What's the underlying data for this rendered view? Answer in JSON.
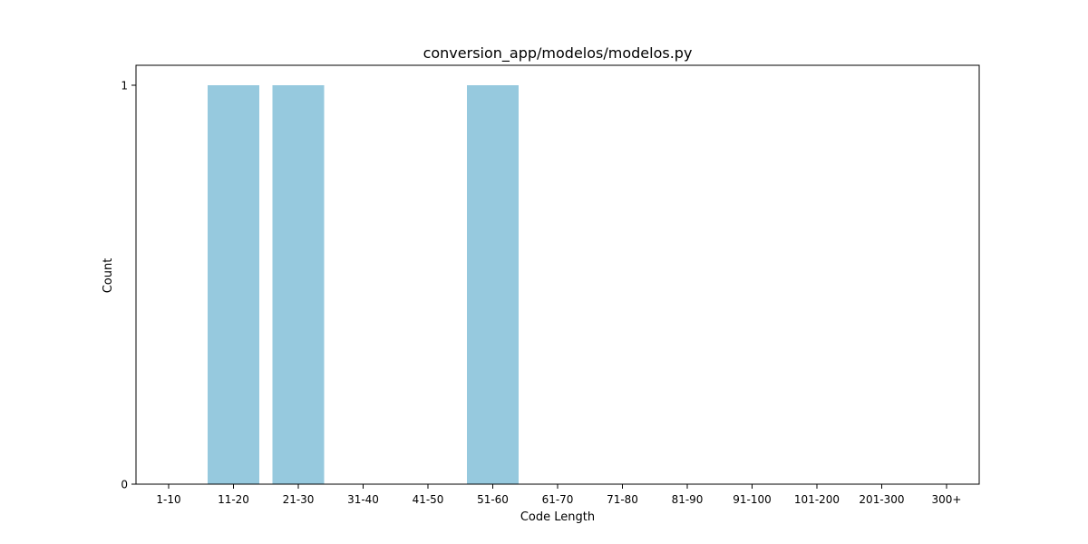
{
  "chart_data": {
    "type": "bar",
    "title": "conversion_app/modelos/modelos.py",
    "xlabel": "Code Length",
    "ylabel": "Count",
    "categories": [
      "1-10",
      "11-20",
      "21-30",
      "31-40",
      "41-50",
      "51-60",
      "61-70",
      "71-80",
      "81-90",
      "91-100",
      "101-200",
      "201-300",
      "300+"
    ],
    "values": [
      0,
      1,
      1,
      0,
      0,
      1,
      0,
      0,
      0,
      0,
      0,
      0,
      0
    ],
    "ylim": [
      0,
      1
    ],
    "yticks": [
      0,
      1
    ],
    "grid": false,
    "bar_color": "#96c9de"
  }
}
